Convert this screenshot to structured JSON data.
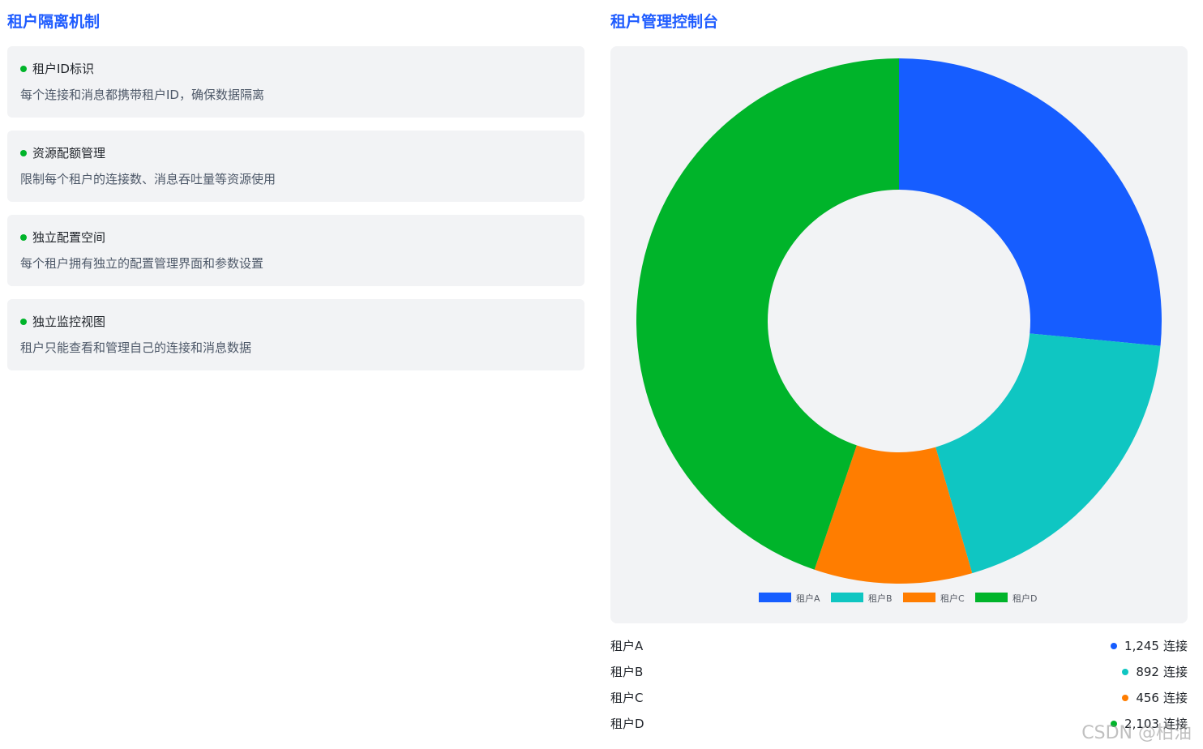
{
  "left": {
    "title": "租户隔离机制",
    "cards": [
      {
        "title": "租户ID标识",
        "desc": "每个连接和消息都携带租户ID，确保数据隔离"
      },
      {
        "title": "资源配额管理",
        "desc": "限制每个租户的连接数、消息吞吐量等资源使用"
      },
      {
        "title": "独立配置空间",
        "desc": "每个租户拥有独立的配置管理界面和参数设置"
      },
      {
        "title": "独立监控视图",
        "desc": "租户只能查看和管理自己的连接和消息数据"
      }
    ]
  },
  "right": {
    "title": "租户管理控制台"
  },
  "chart_data": {
    "type": "pie",
    "donut": true,
    "title": "",
    "categories": [
      "租户A",
      "租户B",
      "租户C",
      "租户D"
    ],
    "values": [
      1245,
      892,
      456,
      2103
    ],
    "colors": [
      "#165dff",
      "#0fc6c2",
      "#ff7d00",
      "#00b42a"
    ],
    "legend": "bottom",
    "start_angle": "top",
    "direction": "clockwise"
  },
  "stats": [
    {
      "name": "租户A",
      "value": "1,245",
      "unit": "连接",
      "color": "#165dff"
    },
    {
      "name": "租户B",
      "value": "892",
      "unit": "连接",
      "color": "#0fc6c2"
    },
    {
      "name": "租户C",
      "value": "456",
      "unit": "连接",
      "color": "#ff7d00"
    },
    {
      "name": "租户D",
      "value": "2,103",
      "unit": "连接",
      "color": "#00b42a"
    }
  ],
  "watermark": "CSDN @柏油"
}
